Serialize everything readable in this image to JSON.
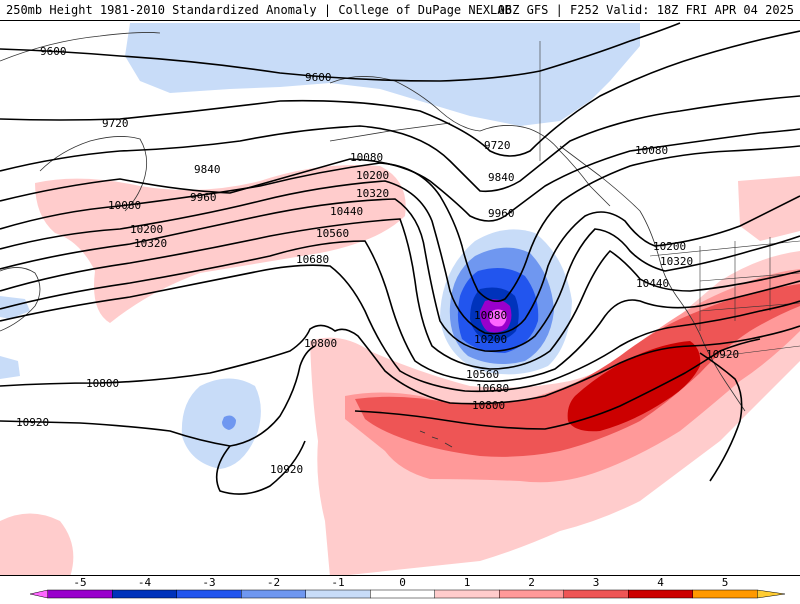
{
  "header": {
    "title": "250mb Height 1981-2010 Standardized Anomaly | College of DuPage NEXLAB",
    "run_info": "06Z GFS | F252 Valid: 18Z FRI APR 04 2025"
  },
  "contour_labels": {
    "c9600a": "9600",
    "c9600b": "9600",
    "c9720a": "9720",
    "c9720b": "9720",
    "c9840a": "9840",
    "c9840b": "9840",
    "c9960a": "9960",
    "c9960b": "9960",
    "c10080a": "10080",
    "c10080b": "10080",
    "c10080c": "10080",
    "c10080d": "10080",
    "c10200a": "10200",
    "c10200b": "10200",
    "c10200c": "10200",
    "c10200d": "10200",
    "c10320a": "10320",
    "c10320b": "10320",
    "c10320c": "10320",
    "c10440a": "10440",
    "c10440b": "10440",
    "c10560a": "10560",
    "c10560b": "10560",
    "c10680a": "10680",
    "c10680b": "10680",
    "c10800a": "10800",
    "c10800b": "10800",
    "c10800c": "10800",
    "c10920a": "10920",
    "c10920b": "10920",
    "c10920c": "10920"
  },
  "colorbar": {
    "ticks": [
      "-5",
      "-4",
      "-3",
      "-2",
      "-1",
      "0",
      "1",
      "2",
      "3",
      "4",
      "5"
    ],
    "colors": [
      "#ff66ff",
      "#9900cc",
      "#0033bb",
      "#2255ee",
      "#6f97f0",
      "#c8dcf8",
      "#ffffff",
      "#ffcccc",
      "#ff9999",
      "#ee5555",
      "#cc0000",
      "#ff9900",
      "#ffcc33"
    ]
  },
  "anomaly_colors": {
    "neg1": "#c8dcf8",
    "neg2": "#6f97f0",
    "neg3": "#2255ee",
    "neg4": "#0033bb",
    "neg5": "#9900cc",
    "neg6": "#ff66ff",
    "pos1": "#ffcccc",
    "pos2": "#ff9999",
    "pos3": "#ee5555",
    "pos4": "#cc0000"
  }
}
